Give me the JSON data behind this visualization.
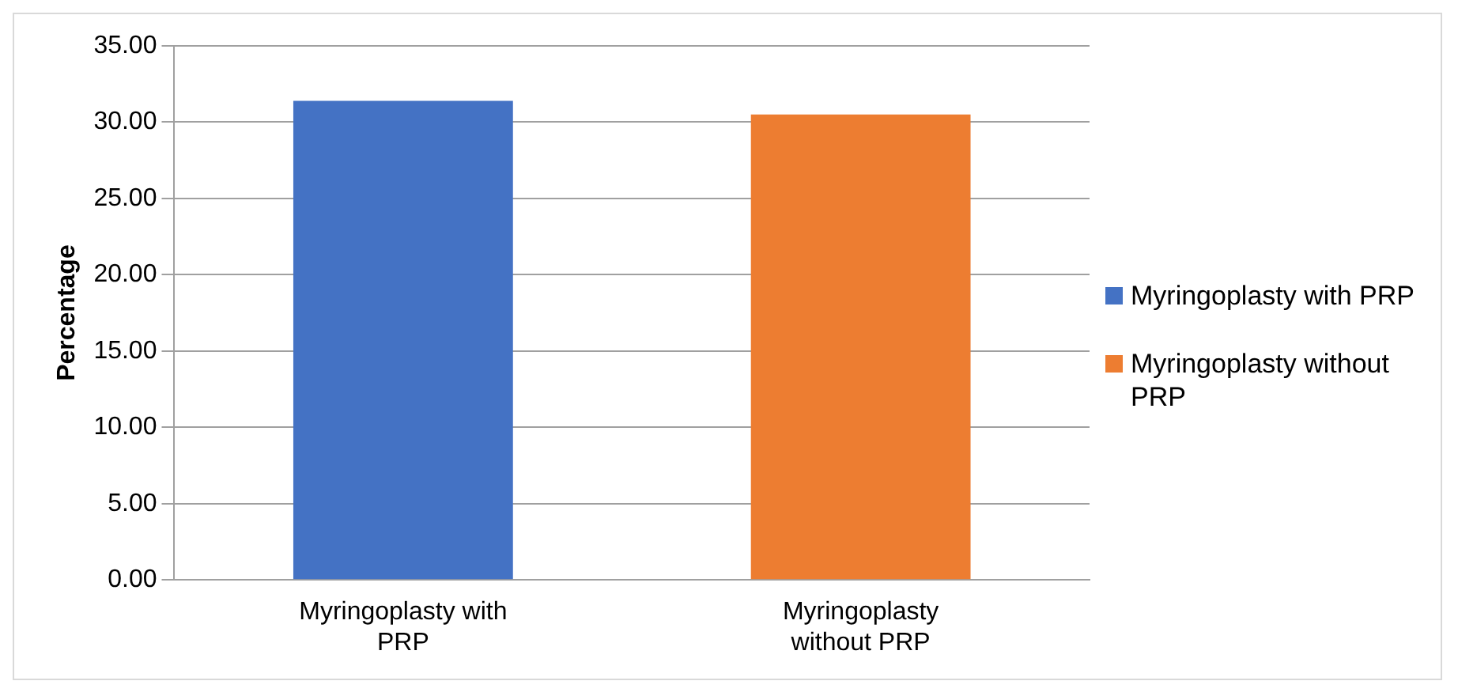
{
  "chart_data": {
    "type": "bar",
    "ylabel": "Percentage",
    "categories": [
      "Myringoplasty with PRP",
      "Myringoplasty without PRP"
    ],
    "series": [
      {
        "name": "Myringoplasty with PRP",
        "color": "#4472c4",
        "values": [
          31.4,
          null
        ]
      },
      {
        "name": "Myringoplasty without PRP",
        "color": "#ed7d31",
        "values": [
          null,
          30.5
        ]
      }
    ],
    "ylim": [
      0,
      35
    ],
    "yticks": [
      {
        "value": 0,
        "label": "0.00"
      },
      {
        "value": 5,
        "label": "5.00"
      },
      {
        "value": 10,
        "label": "10.00"
      },
      {
        "value": 15,
        "label": "15.00"
      },
      {
        "value": 20,
        "label": "20.00"
      },
      {
        "value": 25,
        "label": "25.00"
      },
      {
        "value": 30,
        "label": "30.00"
      },
      {
        "value": 35,
        "label": "35.00"
      }
    ],
    "grid": "y",
    "legend": "right"
  }
}
